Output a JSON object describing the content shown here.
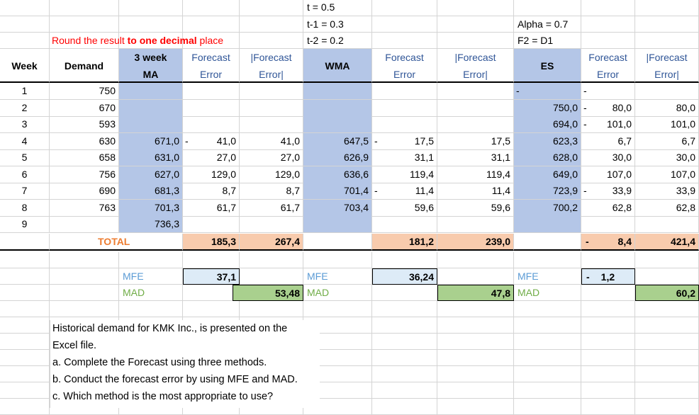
{
  "top_notes": {
    "t": "t = 0.5",
    "t1": "t-1 = 0.3",
    "t2": "t-2 = 0.2",
    "alpha": "Alpha = 0.7",
    "f2": "F2 = D1"
  },
  "instruction": {
    "prefix": "Round the result ",
    "bold": "to one decimal",
    "suffix": " place"
  },
  "headers": {
    "week": "Week",
    "demand": "Demand",
    "ma_line1": "3 week",
    "ma_line2": "MA",
    "fe1_line1": "Forecast",
    "fe1_line2": "Error",
    "afe1_line1": "|Forecast",
    "afe1_line2": "Error|",
    "wma": "WMA",
    "fe2_line1": "Forecast",
    "fe2_line2": "Error",
    "afe2_line1": "|Forecast",
    "afe2_line2": "Error|",
    "es": "ES",
    "fe3_line1": "Forecast",
    "fe3_line2": "Error",
    "afe3_line1": "|Forecast",
    "afe3_line2": "Error|"
  },
  "rows": [
    {
      "week": "1",
      "demand": "750",
      "ma": "",
      "fe1": "",
      "afe1": "",
      "wma": "",
      "fe2": "",
      "afe2": "",
      "es": "-",
      "fe3": "-",
      "afe3": ""
    },
    {
      "week": "2",
      "demand": "670",
      "ma": "",
      "fe1": "",
      "afe1": "",
      "wma": "",
      "fe2": "",
      "afe2": "",
      "es": "750,0",
      "fe3": "80,0",
      "afe3": "80,0"
    },
    {
      "week": "3",
      "demand": "593",
      "ma": "",
      "fe1": "",
      "afe1": "",
      "wma": "",
      "fe2": "",
      "afe2": "",
      "es": "694,0",
      "fe3": "101,0",
      "afe3": "101,0"
    },
    {
      "week": "4",
      "demand": "630",
      "ma": "671,0",
      "fe1": "41,0",
      "afe1": "41,0",
      "wma": "647,5",
      "fe2": "17,5",
      "afe2": "17,5",
      "es": "623,3",
      "fe3": "6,7",
      "afe3": "6,7"
    },
    {
      "week": "5",
      "demand": "658",
      "ma": "631,0",
      "fe1": "27,0",
      "afe1": "27,0",
      "wma": "626,9",
      "fe2": "31,1",
      "afe2": "31,1",
      "es": "628,0",
      "fe3": "30,0",
      "afe3": "30,0"
    },
    {
      "week": "6",
      "demand": "756",
      "ma": "627,0",
      "fe1": "129,0",
      "afe1": "129,0",
      "wma": "636,6",
      "fe2": "119,4",
      "afe2": "119,4",
      "es": "649,0",
      "fe3": "107,0",
      "afe3": "107,0"
    },
    {
      "week": "7",
      "demand": "690",
      "ma": "681,3",
      "fe1": "8,7",
      "afe1": "8,7",
      "wma": "701,4",
      "fe2": "11,4",
      "afe2": "11,4",
      "es": "723,9",
      "fe3": "33,9",
      "afe3": "33,9"
    },
    {
      "week": "8",
      "demand": "763",
      "ma": "701,3",
      "fe1": "61,7",
      "afe1": "61,7",
      "wma": "703,4",
      "fe2": "59,6",
      "afe2": "59,6",
      "es": "700,2",
      "fe3": "62,8",
      "afe3": "62,8"
    },
    {
      "week": "9",
      "demand": "",
      "ma": "736,3",
      "fe1": "",
      "afe1": "",
      "wma": "",
      "fe2": "",
      "afe2": "",
      "es": "",
      "fe3": "",
      "afe3": ""
    }
  ],
  "neg_marks": {
    "fe1_rows": [
      3
    ],
    "fe2_rows": [
      3,
      6
    ],
    "es_rows": [
      1,
      2,
      6
    ]
  },
  "totals": {
    "label": "TOTAL",
    "fe1": "185,3",
    "afe1": "267,4",
    "fe2": "181,2",
    "afe2": "239,0",
    "fe3_dash": "-",
    "fe3": "8,4",
    "afe3": "421,4"
  },
  "metrics": {
    "mfe_label": "MFE",
    "mad_label": "MAD",
    "ma_mfe": "37,1",
    "ma_mad": "53,48",
    "wma_mfe": "36,24",
    "wma_mad": "47,8",
    "es_mfe_dash": "-",
    "es_mfe": "1,2",
    "es_mad": "60,2"
  },
  "question": [
    "Historical demand for KMK Inc., is presented on the",
    "Excel file.",
    "a. Complete the Forecast using three methods.",
    "b. Conduct the forecast error by using MFE and MAD.",
    "c. Which method is the most appropriate to use?"
  ],
  "colors": {
    "blue_fill": "#b4c6e7",
    "orange_fill": "#f8cbad",
    "light_blue_fill": "#ddebf7",
    "green_fill": "#a9d08e",
    "orange_text": "#ed7d31",
    "blue_text": "#5b9bd5",
    "green_text": "#70ad47",
    "red_text": "#ff0000"
  }
}
